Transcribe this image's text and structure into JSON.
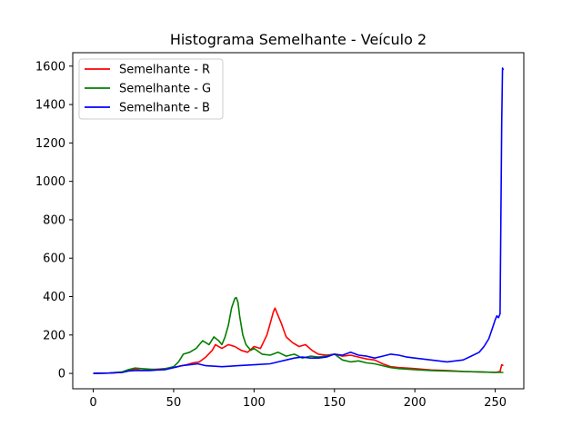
{
  "chart_data": {
    "type": "line",
    "title": "Histograma Semelhante - Veículo 2",
    "xlabel": "",
    "ylabel": "",
    "xlim": [
      -12.75,
      267.75
    ],
    "ylim": [
      -80,
      1670
    ],
    "xticks": [
      0,
      50,
      100,
      150,
      200,
      250
    ],
    "yticks": [
      0,
      200,
      400,
      600,
      800,
      1000,
      1200,
      1400,
      1600
    ],
    "grid": false,
    "legend_position": "top-left",
    "series": [
      {
        "name": "Semelhante - R",
        "color": "#ff0000",
        "x": [
          0,
          10,
          18,
          22,
          26,
          30,
          35,
          40,
          45,
          50,
          55,
          58,
          62,
          66,
          70,
          74,
          76,
          80,
          84,
          88,
          92,
          96,
          100,
          104,
          108,
          110,
          112,
          113,
          115,
          117,
          120,
          124,
          128,
          132,
          136,
          140,
          145,
          150,
          155,
          160,
          165,
          170,
          175,
          180,
          185,
          190,
          195,
          200,
          210,
          220,
          230,
          240,
          250,
          253,
          254,
          255
        ],
        "y": [
          0,
          2,
          5,
          18,
          22,
          15,
          20,
          22,
          25,
          30,
          40,
          45,
          55,
          60,
          85,
          120,
          150,
          130,
          150,
          140,
          120,
          110,
          140,
          130,
          200,
          260,
          320,
          340,
          300,
          260,
          190,
          160,
          140,
          150,
          120,
          100,
          95,
          100,
          90,
          95,
          85,
          75,
          70,
          50,
          35,
          30,
          28,
          25,
          18,
          15,
          10,
          8,
          5,
          10,
          45,
          40
        ]
      },
      {
        "name": "Semelhante - G",
        "color": "#008000",
        "x": [
          0,
          10,
          18,
          22,
          26,
          30,
          35,
          40,
          45,
          50,
          53,
          56,
          60,
          64,
          68,
          72,
          75,
          78,
          80,
          82,
          84,
          86,
          88,
          89,
          90,
          91,
          93,
          95,
          98,
          100,
          105,
          110,
          115,
          120,
          125,
          130,
          135,
          140,
          145,
          150,
          155,
          160,
          165,
          170,
          175,
          180,
          185,
          190,
          200,
          210,
          220,
          230,
          240,
          250,
          255
        ],
        "y": [
          0,
          2,
          8,
          20,
          28,
          25,
          22,
          20,
          25,
          35,
          60,
          100,
          110,
          130,
          170,
          150,
          190,
          170,
          150,
          190,
          250,
          340,
          390,
          395,
          370,
          300,
          200,
          150,
          120,
          130,
          100,
          95,
          110,
          90,
          100,
          80,
          90,
          85,
          90,
          100,
          70,
          60,
          65,
          55,
          50,
          40,
          30,
          25,
          20,
          15,
          12,
          10,
          8,
          5,
          5
        ]
      },
      {
        "name": "Semelhante - B",
        "color": "#0000ff",
        "x": [
          0,
          10,
          18,
          22,
          26,
          30,
          35,
          40,
          45,
          50,
          55,
          60,
          65,
          70,
          80,
          90,
          100,
          110,
          115,
          120,
          125,
          130,
          135,
          140,
          145,
          150,
          155,
          160,
          165,
          170,
          175,
          180,
          185,
          190,
          195,
          200,
          210,
          220,
          230,
          235,
          240,
          243,
          246,
          248,
          250,
          251,
          252,
          253,
          254,
          254.5,
          255
        ],
        "y": [
          0,
          2,
          5,
          12,
          15,
          15,
          15,
          18,
          20,
          30,
          40,
          45,
          50,
          40,
          35,
          40,
          45,
          50,
          60,
          70,
          80,
          85,
          80,
          80,
          85,
          100,
          95,
          110,
          95,
          90,
          80,
          90,
          100,
          95,
          85,
          80,
          70,
          60,
          70,
          90,
          110,
          140,
          180,
          230,
          280,
          300,
          290,
          310,
          1300,
          1590,
          1580
        ]
      }
    ]
  }
}
